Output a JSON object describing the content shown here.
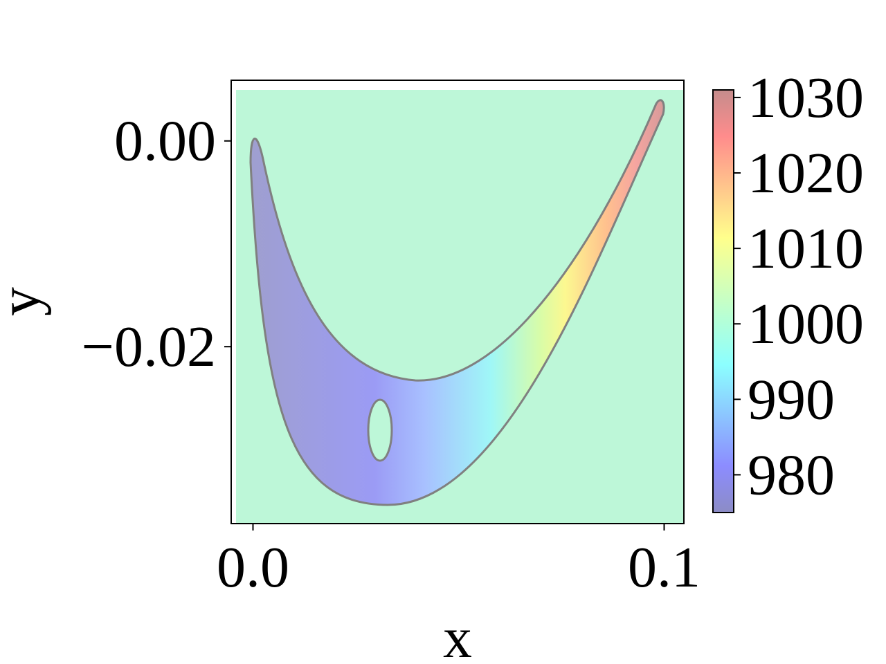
{
  "chart_data": {
    "type": "heatmap",
    "title": "",
    "xlabel": "x",
    "ylabel": "y",
    "xlim": [
      -0.0053,
      0.1048
    ],
    "ylim": [
      -0.0372,
      0.0059
    ],
    "x_ticks": [
      0.0,
      0.1
    ],
    "x_tick_labels": [
      "0.0",
      "0.1"
    ],
    "y_ticks": [
      0.0,
      -0.02
    ],
    "y_tick_labels": [
      "0.00",
      "−0.02"
    ],
    "background_value": 1000,
    "background_color": "#bdf7d8",
    "region": {
      "shape": "curved crescent/boomerang domain with an elliptical hole",
      "outline_color": "#808080",
      "field_direction": "value increases from left (x≈0.04, ~980) to the upper-right tip (x≈0.1, ~1030)",
      "hole": {
        "cx": 0.031,
        "cy": -0.028,
        "rx": 0.003,
        "ry": 0.003
      }
    },
    "colorbar": {
      "ticks": [
        980,
        990,
        1000,
        1010,
        1020,
        1030
      ],
      "tick_labels": [
        "980",
        "990",
        "1000",
        "1010",
        "1020",
        "1030"
      ],
      "range": [
        975,
        1031
      ],
      "colormap": "jet",
      "alpha": 0.45
    },
    "grid": false,
    "legend": "none"
  }
}
